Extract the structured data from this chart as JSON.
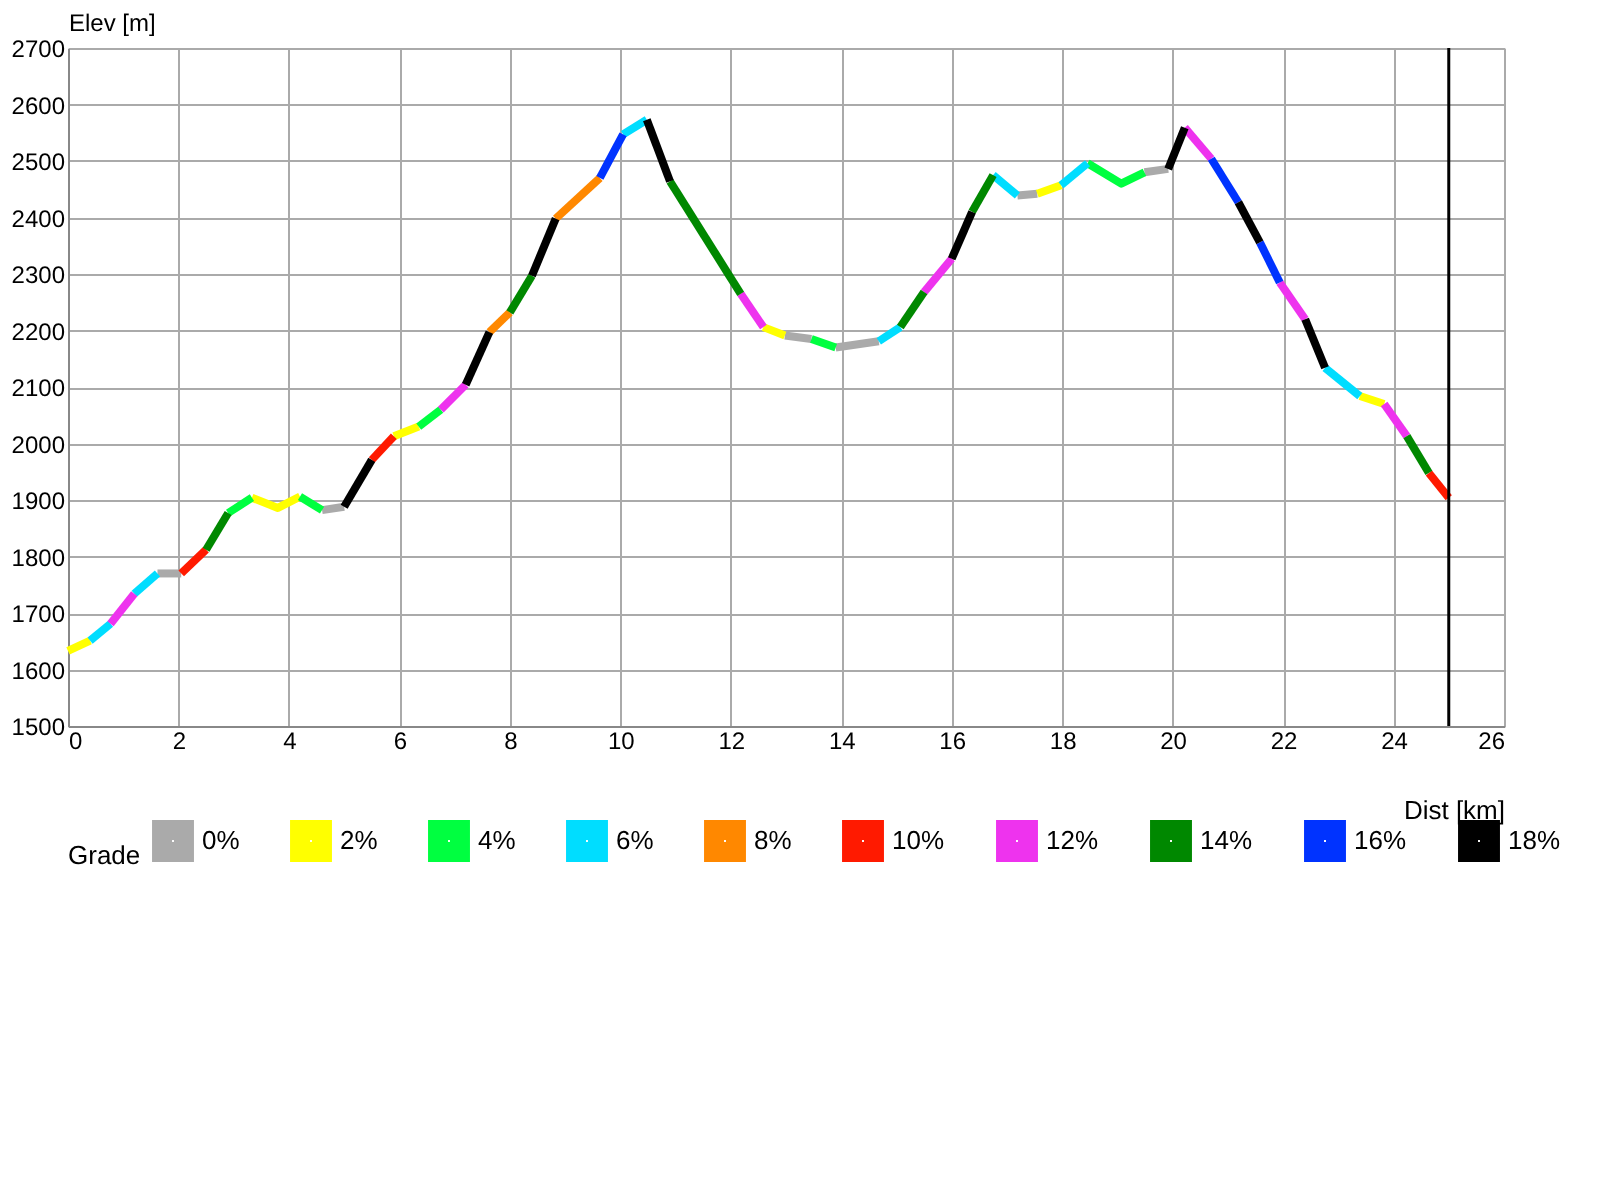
{
  "chart_data": {
    "type": "line",
    "xlabel": "Dist [km]",
    "ylabel": "Elev [m]",
    "legend_title": "Grade",
    "xlim": [
      0,
      26
    ],
    "xticks": [
      0,
      2,
      4,
      6,
      8,
      10,
      12,
      14,
      16,
      18,
      20,
      22,
      24,
      26
    ],
    "ylim": [
      1500,
      2700
    ],
    "yticks": [
      1500,
      1600,
      1700,
      1800,
      1900,
      2000,
      2100,
      2200,
      2300,
      2400,
      2500,
      2600,
      2700
    ],
    "grid": true,
    "legend": "bottom",
    "marker": "none",
    "line_style": "solid",
    "ref_lines": [
      {
        "axis": "x",
        "value": 25,
        "color": "#000000"
      }
    ],
    "series": [
      {
        "name": "0%",
        "color": "#aaaaaa",
        "x": [
          1.62,
          2.05,
          null,
          4.6,
          5.0,
          null,
          12.98,
          13.46,
          null,
          13.9,
          14.68,
          null,
          17.19,
          17.55,
          null,
          19.49,
          19.92
        ],
        "values": [
          1770,
          1770,
          null,
          1882,
          1888,
          null,
          2191,
          2185,
          null,
          2170,
          2181,
          null,
          2439,
          2442,
          null,
          2480,
          2486
        ]
      },
      {
        "name": "2%",
        "color": "#ffff00",
        "x": [
          0,
          0.4,
          null,
          3.33,
          3.8,
          4.2,
          null,
          5.9,
          6.35,
          null,
          12.59,
          12.98,
          null,
          17.55,
          17.98,
          null,
          23.39,
          23.83
        ],
        "values": [
          1633,
          1651,
          null,
          1904,
          1886,
          1906,
          null,
          2013,
          2030,
          null,
          2206,
          2191,
          null,
          2442,
          2457,
          null,
          2084,
          2070
        ]
      },
      {
        "name": "4%",
        "color": "#00ff40",
        "x": [
          2.9,
          3.33,
          null,
          4.2,
          4.6,
          null,
          6.35,
          6.75,
          null,
          13.46,
          13.9,
          null,
          18.46,
          19.07,
          19.49
        ],
        "values": [
          1877,
          1904,
          null,
          1906,
          1882,
          null,
          2030,
          2060,
          null,
          2185,
          2170,
          null,
          2496,
          2460,
          2480
        ]
      },
      {
        "name": "6%",
        "color": "#00ddff",
        "x": [
          0.4,
          0.77,
          null,
          1.2,
          1.62,
          null,
          10.05,
          10.48,
          null,
          14.68,
          15.07,
          null,
          16.75,
          17.19,
          null,
          17.98,
          18.46,
          null,
          22.76,
          23.39
        ],
        "values": [
          1651,
          1681,
          null,
          1734,
          1770,
          null,
          2547,
          2573,
          null,
          2181,
          2206,
          null,
          2475,
          2439,
          null,
          2457,
          2496,
          null,
          2134,
          2084
        ]
      },
      {
        "name": "8%",
        "color": "#ff8800",
        "x": [
          7.63,
          8.0,
          null,
          8.83,
          9.63
        ],
        "values": [
          2197,
          2232,
          null,
          2398,
          2470
        ]
      },
      {
        "name": "10%",
        "color": "#ff1a00",
        "x": [
          2.05,
          2.5,
          null,
          5.5,
          5.9,
          null,
          24.64,
          25.0
        ],
        "values": [
          1770,
          1812,
          null,
          1971,
          2013,
          null,
          1948,
          1904
        ]
      },
      {
        "name": "12%",
        "color": "#ee33ee",
        "x": [
          0.77,
          1.2,
          null,
          6.75,
          7.2,
          null,
          12.18,
          12.59,
          null,
          15.5,
          16.0,
          null,
          20.22,
          20.7,
          null,
          21.94,
          22.4,
          null,
          23.83,
          24.24
        ],
        "values": [
          1681,
          1734,
          null,
          2060,
          2104,
          null,
          2265,
          2206,
          null,
          2268,
          2327,
          null,
          2559,
          2504,
          null,
          2285,
          2220,
          null,
          2070,
          2013
        ]
      },
      {
        "name": "14%",
        "color": "#008800",
        "x": [
          2.5,
          2.9,
          null,
          8.0,
          8.4,
          null,
          10.9,
          12.18,
          null,
          15.07,
          15.5,
          null,
          16.37,
          16.75,
          null,
          24.24,
          24.64
        ],
        "values": [
          1812,
          1877,
          null,
          2232,
          2297,
          null,
          2464,
          2265,
          null,
          2206,
          2268,
          null,
          2410,
          2475,
          null,
          2013,
          1948
        ]
      },
      {
        "name": "16%",
        "color": "#0033ff",
        "x": [
          9.63,
          10.05,
          null,
          20.7,
          21.19,
          null,
          21.58,
          21.94
        ],
        "values": [
          2470,
          2547,
          null,
          2504,
          2427,
          null,
          2356,
          2285
        ]
      },
      {
        "name": "18%",
        "color": "#000000",
        "x": [
          5.0,
          5.5,
          null,
          7.2,
          7.63,
          null,
          8.4,
          8.83,
          null,
          10.48,
          10.9,
          null,
          16.0,
          16.37,
          null,
          19.92,
          20.22,
          null,
          21.19,
          21.58,
          null,
          22.4,
          22.76
        ],
        "values": [
          1888,
          1971,
          null,
          2104,
          2197,
          null,
          2297,
          2398,
          null,
          2573,
          2464,
          null,
          2327,
          2410,
          null,
          2486,
          2559,
          null,
          2427,
          2356,
          null,
          2220,
          2134
        ]
      }
    ]
  }
}
